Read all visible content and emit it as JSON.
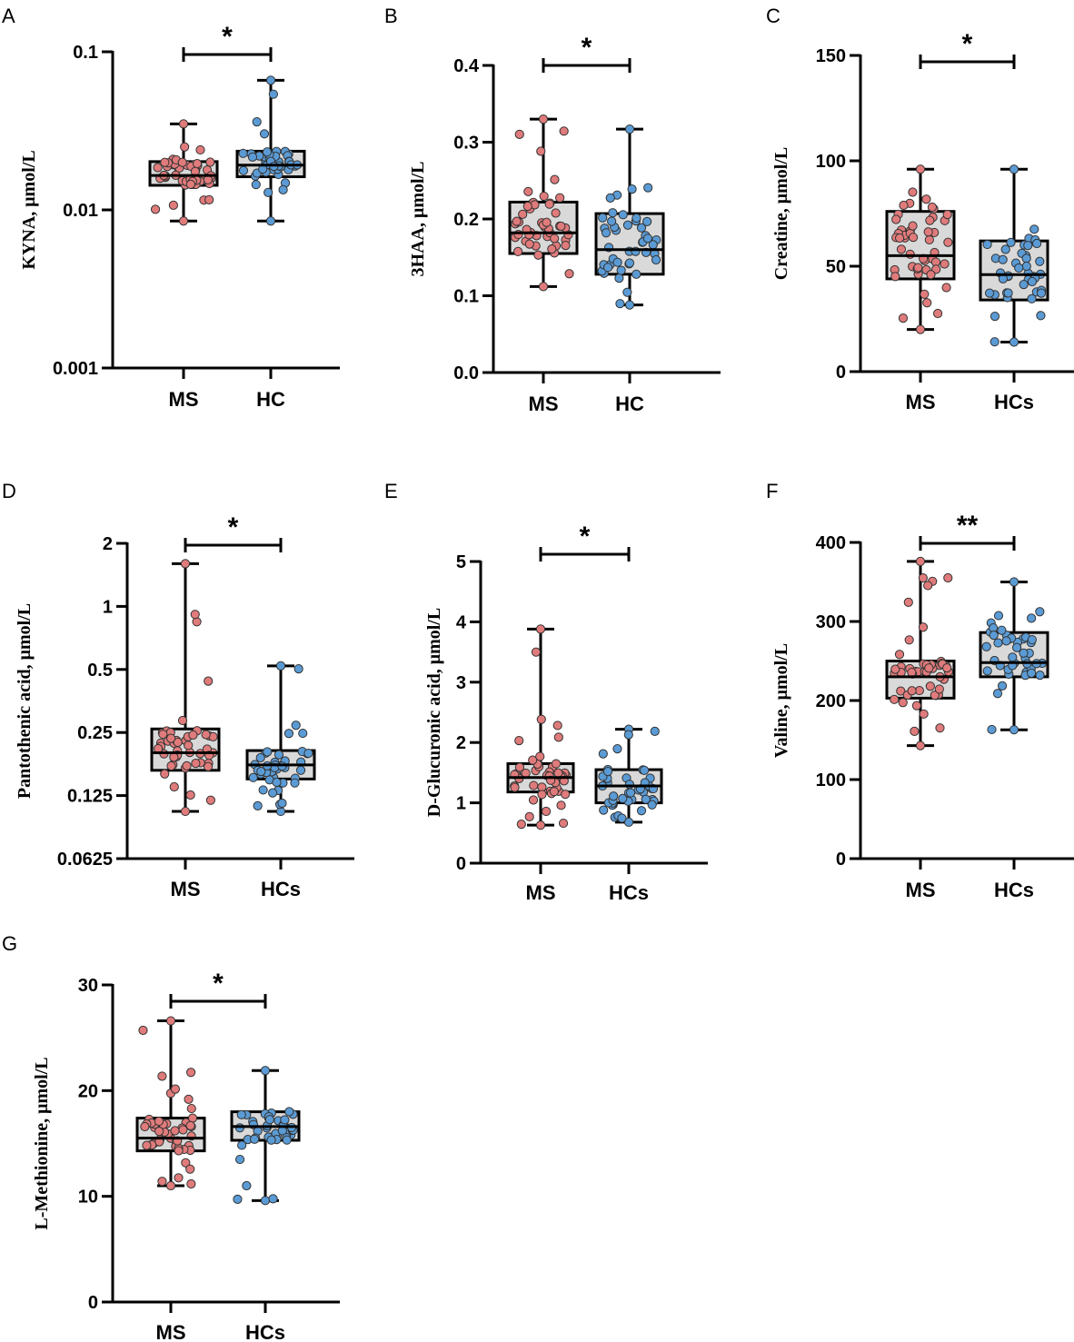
{
  "colors": {
    "ms_fill": "#e07b7b",
    "hc_fill": "#5b9bd5",
    "box_fill": "#d9d9d9",
    "line": "#000000",
    "dot_stroke": "#333333"
  },
  "chart_data": [
    {
      "panel": "A",
      "type": "box",
      "scale": "log",
      "ylabel": "KYNA, μmol/L",
      "yticks": [
        0.001,
        0.01,
        0.1
      ],
      "ytick_labels": [
        "0.001",
        "0.01",
        "0.1"
      ],
      "ylim": [
        0.001,
        0.1
      ],
      "categories": [
        "MS",
        "HC"
      ],
      "significance": "*",
      "groups": [
        {
          "name": "MS",
          "color": "ms",
          "min": 0.0085,
          "q1": 0.0143,
          "median": 0.0165,
          "q3": 0.0202,
          "max": 0.035,
          "n": 50
        },
        {
          "name": "HC",
          "color": "hc",
          "min": 0.0085,
          "q1": 0.0162,
          "median": 0.0192,
          "q3": 0.0235,
          "max": 0.066,
          "n": 45
        }
      ]
    },
    {
      "panel": "B",
      "type": "box",
      "scale": "linear",
      "ylabel": "3HAA, μmol/L",
      "yticks": [
        0.0,
        0.1,
        0.2,
        0.3,
        0.4
      ],
      "ytick_labels": [
        "0.0",
        "0.1",
        "0.2",
        "0.3",
        "0.4"
      ],
      "ylim": [
        0.0,
        0.4
      ],
      "categories": [
        "MS",
        "HC"
      ],
      "significance": "*",
      "groups": [
        {
          "name": "MS",
          "color": "ms",
          "min": 0.112,
          "q1": 0.155,
          "median": 0.182,
          "q3": 0.222,
          "max": 0.33,
          "n": 50
        },
        {
          "name": "HC",
          "color": "hc",
          "min": 0.088,
          "q1": 0.128,
          "median": 0.16,
          "q3": 0.207,
          "max": 0.317,
          "n": 45
        }
      ]
    },
    {
      "panel": "C",
      "type": "box",
      "scale": "linear",
      "ylabel": "Creatine, μmol/L",
      "yticks": [
        0,
        50,
        100,
        150
      ],
      "ytick_labels": [
        "0",
        "50",
        "100",
        "150"
      ],
      "ylim": [
        0,
        150
      ],
      "categories": [
        "MS",
        "HCs"
      ],
      "significance": "*",
      "groups": [
        {
          "name": "MS",
          "color": "ms",
          "min": 20,
          "q1": 44,
          "median": 55,
          "q3": 76,
          "max": 96,
          "n": 50
        },
        {
          "name": "HCs",
          "color": "hc",
          "min": 14,
          "q1": 34,
          "median": 46,
          "q3": 62,
          "max": 96,
          "n": 45
        }
      ]
    },
    {
      "panel": "D",
      "type": "box",
      "scale": "log2",
      "ylabel": "Pantothenic acid, μmol/L",
      "yticks": [
        0.0625,
        0.125,
        0.25,
        0.5,
        1,
        2
      ],
      "ytick_labels": [
        "0.0625",
        "0.125",
        "0.25",
        "0.5",
        "1",
        "2"
      ],
      "ylim": [
        0.0625,
        2
      ],
      "categories": [
        "MS",
        "HCs"
      ],
      "significance": "*",
      "groups": [
        {
          "name": "MS",
          "color": "ms",
          "min": 0.105,
          "q1": 0.165,
          "median": 0.2,
          "q3": 0.26,
          "max": 1.6,
          "n": 50
        },
        {
          "name": "HCs",
          "color": "hc",
          "min": 0.105,
          "q1": 0.15,
          "median": 0.175,
          "q3": 0.205,
          "max": 0.52,
          "n": 45
        }
      ]
    },
    {
      "panel": "E",
      "type": "box",
      "scale": "linear",
      "ylabel": "D-Glucuronic acid, μmol/L",
      "yticks": [
        0,
        1,
        2,
        3,
        4,
        5
      ],
      "ytick_labels": [
        "0",
        "1",
        "2",
        "3",
        "4",
        "5"
      ],
      "ylim": [
        0,
        5
      ],
      "categories": [
        "MS",
        "HCs"
      ],
      "significance": "*",
      "groups": [
        {
          "name": "MS",
          "color": "ms",
          "min": 0.63,
          "q1": 1.18,
          "median": 1.42,
          "q3": 1.65,
          "max": 3.88,
          "n": 50
        },
        {
          "name": "HCs",
          "color": "hc",
          "min": 0.68,
          "q1": 1.0,
          "median": 1.28,
          "q3": 1.55,
          "max": 2.22,
          "n": 45
        }
      ]
    },
    {
      "panel": "F",
      "type": "box",
      "scale": "linear",
      "ylabel": "Valine, μmol/L",
      "yticks": [
        0,
        100,
        200,
        300,
        400
      ],
      "ytick_labels": [
        "0",
        "100",
        "200",
        "300",
        "400"
      ],
      "ylim": [
        0,
        400
      ],
      "categories": [
        "MS",
        "HCs"
      ],
      "significance": "**",
      "groups": [
        {
          "name": "MS",
          "color": "ms",
          "min": 143,
          "q1": 203,
          "median": 230,
          "q3": 250,
          "max": 376,
          "n": 50
        },
        {
          "name": "HCs",
          "color": "hc",
          "min": 163,
          "q1": 230,
          "median": 248,
          "q3": 286,
          "max": 350,
          "n": 45
        }
      ]
    },
    {
      "panel": "G",
      "type": "box",
      "scale": "linear",
      "ylabel": "L-Methionine, μmol/L",
      "yticks": [
        0,
        10,
        20,
        30
      ],
      "ytick_labels": [
        "0",
        "10",
        "20",
        "30"
      ],
      "ylim": [
        0,
        30
      ],
      "categories": [
        "MS",
        "HCs"
      ],
      "significance": "*",
      "groups": [
        {
          "name": "MS",
          "color": "ms",
          "min": 11.0,
          "q1": 14.3,
          "median": 15.5,
          "q3": 17.4,
          "max": 26.6,
          "n": 50
        },
        {
          "name": "HCs",
          "color": "hc",
          "min": 9.6,
          "q1": 15.3,
          "median": 16.6,
          "q3": 18.0,
          "max": 21.9,
          "n": 45
        }
      ]
    }
  ]
}
